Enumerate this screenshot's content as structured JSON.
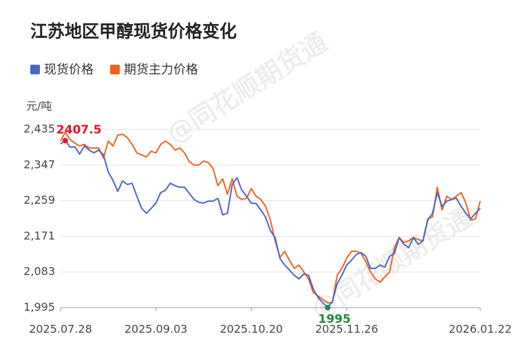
{
  "chart_data": {
    "type": "line",
    "title": "江苏地区甲醇现货价格变化",
    "y_unit": "元/吨",
    "watermark": "@同花顺期货通",
    "categories": [
      "2025.07.28",
      null,
      null,
      null,
      null,
      null,
      null,
      null,
      null,
      null,
      null,
      null,
      null,
      null,
      null,
      null,
      null,
      null,
      null,
      null,
      "2025.09.03",
      null,
      null,
      null,
      null,
      null,
      null,
      null,
      null,
      null,
      null,
      null,
      null,
      null,
      null,
      null,
      null,
      null,
      null,
      null,
      "2025.10.20",
      null,
      null,
      null,
      null,
      null,
      null,
      null,
      null,
      null,
      null,
      null,
      null,
      null,
      null,
      null,
      null,
      null,
      null,
      null,
      "2025.11.26",
      null,
      null,
      null,
      null,
      null,
      null,
      null,
      null,
      null,
      null,
      null,
      null,
      null,
      null,
      null,
      null,
      null,
      null,
      null,
      null,
      null,
      null,
      null,
      null,
      null,
      null,
      null,
      "2026.01.22"
    ],
    "series": [
      {
        "name": "现货价格",
        "color": "#4a66c0",
        "values": [
          2399,
          2407.5,
          2391,
          2392,
          2374,
          2394,
          2384,
          2377,
          2384,
          2372,
          2330,
          2309,
          2282,
          2308,
          2299,
          2302,
          2270,
          2240,
          2228,
          2240,
          2253,
          2279,
          2285,
          2302,
          2296,
          2292,
          2292,
          2277,
          2262,
          2255,
          2253,
          2258,
          2258,
          2265,
          2224,
          2228,
          2299,
          2316,
          2285,
          2270,
          2253,
          2252,
          2236,
          2218,
          2185,
          2168,
          2117,
          2100,
          2088,
          2075,
          2066,
          2078,
          2075,
          2041,
          2020,
          2007,
          1995,
          2010,
          2054,
          2075,
          2100,
          2112,
          2126,
          2131,
          2122,
          2092,
          2092,
          2100,
          2095,
          2122,
          2129,
          2168,
          2151,
          2143,
          2168,
          2151,
          2160,
          2211,
          2228,
          2279,
          2245,
          2258,
          2262,
          2265,
          2245,
          2228,
          2214,
          2228,
          2240
        ]
      },
      {
        "name": "期货主力价格",
        "color": "#f0621e",
        "values": [
          2406,
          2428,
          2410,
          2401,
          2394,
          2398,
          2389,
          2389,
          2389,
          2364,
          2406,
          2394,
          2421,
          2423,
          2415,
          2398,
          2377,
          2372,
          2367,
          2381,
          2377,
          2398,
          2406,
          2398,
          2384,
          2389,
          2377,
          2355,
          2347,
          2347,
          2357,
          2353,
          2338,
          2296,
          2313,
          2275,
          2313,
          2270,
          2262,
          2265,
          2289,
          2270,
          2262,
          2245,
          2211,
          2160,
          2119,
          2134,
          2112,
          2092,
          2100,
          2083,
          2066,
          2032,
          2024,
          2015,
          2007,
          2007,
          2075,
          2092,
          2117,
          2134,
          2134,
          2129,
          2109,
          2083,
          2066,
          2058,
          2071,
          2083,
          2143,
          2168,
          2156,
          2160,
          2168,
          2163,
          2160,
          2214,
          2219,
          2292,
          2236,
          2270,
          2262,
          2270,
          2279,
          2253,
          2211,
          2214,
          2258
        ]
      }
    ],
    "max_color": "#e8132a",
    "min_color": "#1f8a3c",
    "ylim": [
      1995,
      2435
    ],
    "yticks": [
      {
        "value": 1995,
        "label": "1,995"
      },
      {
        "value": 2083,
        "label": "2,083"
      },
      {
        "value": 2171,
        "label": "2,171"
      },
      {
        "value": 2259,
        "label": "2,259"
      },
      {
        "value": 2347,
        "label": "2,347"
      },
      {
        "value": 2435,
        "label": "2,435"
      }
    ],
    "grid": true
  }
}
